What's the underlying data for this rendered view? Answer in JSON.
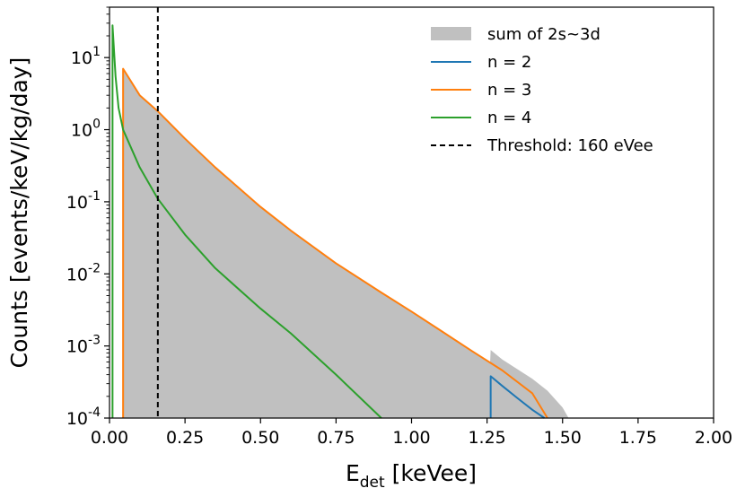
{
  "chart_data": {
    "type": "area",
    "xlabel": "E",
    "xlabel_sub": "det",
    "xlabel_unit": " [keVee]",
    "ylabel": "Counts [events/keV/kg/day]",
    "xlim": [
      0.0,
      2.0
    ],
    "ylim": [
      0.0001,
      50
    ],
    "yscale": "log",
    "x_ticks": [
      "0.00",
      "0.25",
      "0.50",
      "0.75",
      "1.00",
      "1.25",
      "1.50",
      "1.75",
      "2.00"
    ],
    "y_ticks": [
      {
        "base": "10",
        "exp": "1"
      },
      {
        "base": "10",
        "exp": "0"
      },
      {
        "base": "10",
        "exp": "-1"
      },
      {
        "base": "10",
        "exp": "-2"
      },
      {
        "base": "10",
        "exp": "-3"
      },
      {
        "base": "10",
        "exp": "-4"
      }
    ],
    "legend_position": "top-right",
    "series": [
      {
        "name": "sum of 2s~3d",
        "kind": "filled",
        "color": "#c0c0c0",
        "points": [
          [
            0.045,
            0.0001
          ],
          [
            0.045,
            7.0
          ],
          [
            0.1,
            3.0
          ],
          [
            0.16,
            1.8
          ],
          [
            0.25,
            0.75
          ],
          [
            0.35,
            0.3
          ],
          [
            0.5,
            0.085
          ],
          [
            0.6,
            0.04
          ],
          [
            0.75,
            0.014
          ],
          [
            0.9,
            0.0055
          ],
          [
            1.0,
            0.003
          ],
          [
            1.1,
            0.0016
          ],
          [
            1.2,
            0.00085
          ],
          [
            1.26,
            0.00058
          ],
          [
            1.262,
            0.00088
          ],
          [
            1.3,
            0.00065
          ],
          [
            1.4,
            0.00035
          ],
          [
            1.45,
            0.00024
          ],
          [
            1.5,
            0.00014
          ],
          [
            1.52,
            0.0001
          ]
        ]
      },
      {
        "name": "n = 2",
        "kind": "line",
        "color": "#1f77b4",
        "points": [
          [
            1.262,
            0.0001
          ],
          [
            1.262,
            0.00038
          ],
          [
            1.3,
            0.00028
          ],
          [
            1.35,
            0.00019
          ],
          [
            1.4,
            0.00013
          ],
          [
            1.44,
            0.0001
          ]
        ]
      },
      {
        "name": "n = 3",
        "kind": "line",
        "color": "#ff7f0e",
        "points": [
          [
            0.045,
            0.0001
          ],
          [
            0.045,
            7.0
          ],
          [
            0.1,
            3.0
          ],
          [
            0.16,
            1.8
          ],
          [
            0.25,
            0.75
          ],
          [
            0.35,
            0.3
          ],
          [
            0.5,
            0.085
          ],
          [
            0.6,
            0.04
          ],
          [
            0.75,
            0.014
          ],
          [
            0.9,
            0.0055
          ],
          [
            1.0,
            0.003
          ],
          [
            1.1,
            0.0016
          ],
          [
            1.2,
            0.00085
          ],
          [
            1.3,
            0.00046
          ],
          [
            1.4,
            0.00022
          ],
          [
            1.45,
            0.0001
          ]
        ]
      },
      {
        "name": "n = 4",
        "kind": "line",
        "color": "#2ca02c",
        "points": [
          [
            0.01,
            0.0001
          ],
          [
            0.01,
            28.0
          ],
          [
            0.02,
            5.5
          ],
          [
            0.03,
            2.0
          ],
          [
            0.045,
            1.0
          ],
          [
            0.1,
            0.3
          ],
          [
            0.16,
            0.11
          ],
          [
            0.25,
            0.035
          ],
          [
            0.35,
            0.012
          ],
          [
            0.5,
            0.0033
          ],
          [
            0.6,
            0.0015
          ],
          [
            0.75,
            0.0004
          ],
          [
            0.9,
            0.0001
          ]
        ]
      },
      {
        "name": "Threshold: 160 eVee",
        "kind": "vline",
        "color": "#000000",
        "x": 0.16
      }
    ]
  }
}
